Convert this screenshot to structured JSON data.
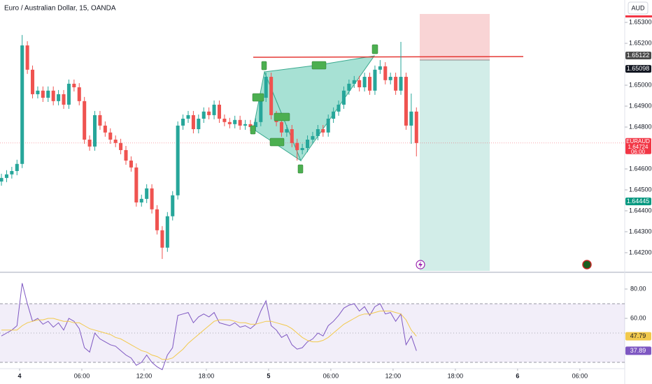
{
  "chart_data": [
    {
      "type": "candlestick",
      "title": "Euro / Australian Dollar, 15, OANDA",
      "currency": "AUD",
      "up_color": "#26a69a",
      "down_color": "#ef5350",
      "x": [
        -7,
        -5,
        -3,
        -1,
        1,
        3,
        5,
        7,
        9,
        11,
        13,
        15,
        17,
        19,
        21,
        23,
        25,
        27,
        29,
        31,
        33,
        35,
        37,
        39,
        41,
        43,
        45,
        47,
        49,
        51,
        53,
        55,
        57,
        59,
        61,
        63,
        65,
        67,
        69,
        71,
        73,
        75,
        77,
        79,
        81,
        83,
        85,
        87,
        89,
        91,
        93,
        95,
        97,
        99,
        101,
        103,
        105,
        107,
        109,
        111,
        113,
        115,
        117,
        119,
        121,
        123,
        125,
        127,
        129,
        131,
        133,
        135,
        137,
        139,
        141,
        143,
        145,
        147,
        149,
        151,
        153
      ],
      "open": [
        1.6454,
        1.64557,
        1.64574,
        1.6459,
        1.64624,
        1.6519,
        1.65074,
        1.64957,
        1.64974,
        1.6494,
        1.64974,
        1.64924,
        1.64957,
        1.64907,
        1.65007,
        1.6499,
        1.64924,
        1.6474,
        1.64707,
        1.64857,
        1.64807,
        1.64774,
        1.6474,
        1.64724,
        1.6469,
        1.6464,
        1.64607,
        1.6444,
        1.64457,
        1.64507,
        1.64407,
        1.64307,
        1.64224,
        1.64374,
        1.64474,
        1.64807,
        1.6484,
        1.64857,
        1.6479,
        1.6484,
        1.64874,
        1.64857,
        1.64907,
        1.6484,
        1.64824,
        1.64814,
        1.64834,
        1.64807,
        1.64814,
        1.648,
        1.64824,
        1.6494,
        1.6504,
        1.64857,
        1.64824,
        1.64774,
        1.6479,
        1.64724,
        1.6469,
        1.647,
        1.6474,
        1.64757,
        1.6479,
        1.64774,
        1.6484,
        1.64874,
        1.64907,
        1.64974,
        1.65007,
        1.65024,
        1.6499,
        1.6504,
        1.64974,
        1.65074,
        1.6509,
        1.65024,
        1.6504,
        1.64974,
        1.6504,
        1.64807,
        1.64874
      ],
      "high": [
        1.64577,
        1.64594,
        1.6461,
        1.64644,
        1.6524,
        1.6521,
        1.65094,
        1.64994,
        1.64994,
        1.64994,
        1.64994,
        1.64977,
        1.64977,
        1.65027,
        1.65027,
        1.6501,
        1.64944,
        1.6476,
        1.64877,
        1.64877,
        1.64827,
        1.64794,
        1.6476,
        1.64744,
        1.6471,
        1.6466,
        1.64627,
        1.64477,
        1.64527,
        1.64527,
        1.64427,
        1.64327,
        1.64394,
        1.64494,
        1.64827,
        1.6486,
        1.64877,
        1.64877,
        1.6486,
        1.64894,
        1.64894,
        1.64927,
        1.64927,
        1.6486,
        1.64844,
        1.64854,
        1.64854,
        1.64834,
        1.64834,
        1.64844,
        1.6496,
        1.6506,
        1.6506,
        1.64877,
        1.64844,
        1.6481,
        1.6481,
        1.64744,
        1.6472,
        1.6476,
        1.64777,
        1.6481,
        1.6481,
        1.6486,
        1.64894,
        1.64927,
        1.64994,
        1.65027,
        1.65044,
        1.65044,
        1.6506,
        1.6506,
        1.65094,
        1.6512,
        1.6511,
        1.6506,
        1.6506,
        1.65207,
        1.6506,
        1.6496,
        1.64894
      ],
      "low": [
        1.6452,
        1.64537,
        1.64554,
        1.6457,
        1.64604,
        1.65054,
        1.64937,
        1.64937,
        1.6492,
        1.6492,
        1.64904,
        1.64904,
        1.64887,
        1.64887,
        1.6497,
        1.64904,
        1.6472,
        1.64687,
        1.64687,
        1.64787,
        1.64754,
        1.6472,
        1.64704,
        1.6467,
        1.6462,
        1.64587,
        1.6442,
        1.6442,
        1.64437,
        1.64387,
        1.64287,
        1.6417,
        1.64204,
        1.64354,
        1.64454,
        1.64787,
        1.6482,
        1.6477,
        1.6477,
        1.6482,
        1.64837,
        1.64837,
        1.6482,
        1.64804,
        1.64794,
        1.64794,
        1.64787,
        1.64787,
        1.6478,
        1.6478,
        1.64804,
        1.6492,
        1.64837,
        1.64804,
        1.64754,
        1.64754,
        1.64704,
        1.6464,
        1.6467,
        1.6468,
        1.6472,
        1.64737,
        1.64754,
        1.64754,
        1.6482,
        1.64854,
        1.64887,
        1.64954,
        1.64987,
        1.6497,
        1.6497,
        1.64954,
        1.64954,
        1.65054,
        1.65004,
        1.65004,
        1.64954,
        1.64954,
        1.64787,
        1.6472,
        1.6466
      ],
      "close": [
        1.64557,
        1.64574,
        1.6459,
        1.64624,
        1.6519,
        1.65074,
        1.64957,
        1.64974,
        1.6494,
        1.64974,
        1.64924,
        1.64957,
        1.64907,
        1.65007,
        1.6499,
        1.64924,
        1.6474,
        1.64707,
        1.64857,
        1.64807,
        1.64774,
        1.6474,
        1.64724,
        1.6469,
        1.6464,
        1.64607,
        1.6444,
        1.64457,
        1.64507,
        1.64407,
        1.64307,
        1.64224,
        1.64374,
        1.64474,
        1.64807,
        1.6484,
        1.64857,
        1.6479,
        1.6484,
        1.64874,
        1.64857,
        1.64907,
        1.6484,
        1.64824,
        1.64814,
        1.64834,
        1.64807,
        1.64814,
        1.648,
        1.64824,
        1.6494,
        1.6504,
        1.64857,
        1.64824,
        1.64774,
        1.6479,
        1.64724,
        1.6469,
        1.647,
        1.6474,
        1.64757,
        1.6479,
        1.64774,
        1.6484,
        1.64874,
        1.64907,
        1.64974,
        1.65007,
        1.65024,
        1.6499,
        1.6504,
        1.64974,
        1.65074,
        1.6509,
        1.65024,
        1.6504,
        1.64974,
        1.6504,
        1.64807,
        1.64874,
        1.64724
      ],
      "xlim": [
        -7.55,
        233.3
      ],
      "ylim": [
        1.64113,
        1.65407
      ],
      "yticks": [
        {
          "value": 1.653,
          "label": "1.65300"
        },
        {
          "value": 1.652,
          "label": "1.65200"
        },
        {
          "value": 1.65,
          "label": "1.65000"
        },
        {
          "value": 1.649,
          "label": "1.64900"
        },
        {
          "value": 1.648,
          "label": "1.64800"
        },
        {
          "value": 1.646,
          "label": "1.64600"
        },
        {
          "value": 1.645,
          "label": "1.64500"
        },
        {
          "value": 1.644,
          "label": "1.64400"
        },
        {
          "value": 1.643,
          "label": "1.64300"
        },
        {
          "value": 1.642,
          "label": "1.64200"
        }
      ],
      "badges": [
        {
          "value": 1.65122,
          "color": "#4a4a4a"
        },
        {
          "value": 1.65098,
          "color": "#131722"
        },
        {
          "symbol": "EURAUD",
          "value": 1.64724,
          "countdown": "06:00",
          "color": "#f23645"
        },
        {
          "value": 1.64445,
          "color": "#089981"
        }
      ]
    },
    {
      "type": "line",
      "x": [
        -7,
        -5,
        -3,
        -1,
        1,
        3,
        5,
        7,
        9,
        11,
        13,
        15,
        17,
        19,
        21,
        23,
        25,
        27,
        29,
        31,
        33,
        35,
        37,
        39,
        41,
        43,
        45,
        47,
        49,
        51,
        53,
        55,
        57,
        59,
        61,
        63,
        65,
        67,
        69,
        71,
        73,
        75,
        77,
        79,
        81,
        83,
        85,
        87,
        89,
        91,
        93,
        95,
        97,
        99,
        101,
        103,
        105,
        107,
        109,
        111,
        113,
        115,
        117,
        119,
        121,
        123,
        125,
        127,
        129,
        131,
        133,
        135,
        137,
        139,
        141,
        143,
        145,
        147,
        149,
        151,
        153
      ],
      "series": [
        {
          "color": "#7e57c2",
          "values": [
            48,
            50,
            52,
            55,
            84,
            70,
            58,
            60,
            56,
            58,
            54,
            57,
            52,
            60,
            58,
            53,
            40,
            37,
            50,
            46,
            44,
            42,
            41,
            38,
            35,
            33,
            28,
            30,
            35,
            30,
            27,
            25,
            35,
            40,
            62,
            63,
            64,
            57,
            61,
            63,
            61,
            64,
            57,
            56,
            55,
            57,
            54,
            55,
            53,
            56,
            65,
            72,
            55,
            52,
            47,
            49,
            42,
            39,
            40,
            44,
            46,
            50,
            48,
            55,
            58,
            62,
            67,
            69,
            70,
            65,
            68,
            62,
            68,
            70,
            63,
            64,
            58,
            63,
            42,
            48,
            37.89
          ]
        },
        {
          "color": "#f2c94c",
          "values": [
            52,
            52,
            52,
            52,
            55,
            57,
            58,
            59,
            59,
            60,
            60,
            59,
            58,
            58,
            57,
            57,
            55,
            53,
            52,
            51,
            50,
            49,
            47,
            46,
            44,
            42,
            40,
            38,
            37,
            35,
            34,
            32,
            32,
            33,
            36,
            39,
            43,
            46,
            49,
            52,
            55,
            58,
            59,
            59,
            59,
            58,
            57,
            57,
            56,
            56,
            57,
            58,
            58,
            57,
            56,
            55,
            53,
            50,
            47,
            45,
            44,
            44,
            45,
            47,
            50,
            53,
            56,
            58,
            60,
            62,
            63,
            63,
            64,
            65,
            65,
            65,
            64,
            63,
            59,
            52,
            47.79
          ]
        }
      ],
      "band": [
        30,
        70
      ],
      "midline": 50,
      "xlim": [
        -7.55,
        233.3
      ],
      "ylim": [
        22.38,
        90.48
      ],
      "yticks": [
        {
          "value": 80,
          "label": "80.00"
        },
        {
          "value": 60,
          "label": "60.00"
        }
      ],
      "xticks": [
        {
          "value": 0,
          "label": "4"
        },
        {
          "value": 24,
          "label": "06:00"
        },
        {
          "value": 48,
          "label": "12:00"
        },
        {
          "value": 72,
          "label": "18:00"
        },
        {
          "value": 96,
          "label": "5"
        },
        {
          "value": 120,
          "label": "06:00"
        },
        {
          "value": 144,
          "label": "12:00"
        },
        {
          "value": 168,
          "label": "18:00"
        },
        {
          "value": 192,
          "label": "6"
        },
        {
          "value": 216,
          "label": "06:00"
        }
      ]
    }
  ]
}
